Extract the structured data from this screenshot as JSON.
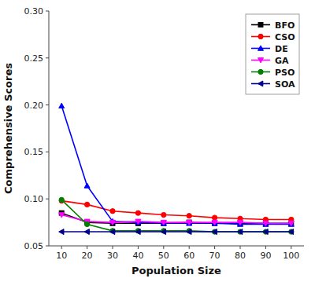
{
  "chart_data": {
    "type": "line",
    "xlabel": "Population Size",
    "ylabel": "Comprehensive Scores",
    "x": [
      10,
      20,
      30,
      40,
      50,
      60,
      70,
      80,
      90,
      100
    ],
    "series": [
      {
        "name": "BFO",
        "color": "#000000",
        "marker": "square",
        "values": [
          0.085,
          0.075,
          0.074,
          0.074,
          0.074,
          0.075,
          0.074,
          0.074,
          0.074,
          0.074
        ]
      },
      {
        "name": "CSO",
        "color": "#ff0000",
        "marker": "circle",
        "values": [
          0.098,
          0.094,
          0.087,
          0.085,
          0.083,
          0.082,
          0.08,
          0.079,
          0.078,
          0.078
        ]
      },
      {
        "name": "DE",
        "color": "#0000ff",
        "marker": "triangle-up",
        "values": [
          0.199,
          0.114,
          0.076,
          0.075,
          0.074,
          0.074,
          0.074,
          0.073,
          0.073,
          0.073
        ]
      },
      {
        "name": "GA",
        "color": "#ff00ff",
        "marker": "triangle-down",
        "values": [
          0.083,
          0.076,
          0.075,
          0.076,
          0.075,
          0.075,
          0.075,
          0.075,
          0.074,
          0.074
        ]
      },
      {
        "name": "PSO",
        "color": "#008000",
        "marker": "circle",
        "values": [
          0.099,
          0.073,
          0.066,
          0.066,
          0.066,
          0.066,
          0.065,
          0.065,
          0.065,
          0.065
        ]
      },
      {
        "name": "SOA",
        "color": "#00008b",
        "marker": "triangle-left",
        "values": [
          0.065,
          0.065,
          0.065,
          0.065,
          0.065,
          0.065,
          0.065,
          0.065,
          0.065,
          0.065
        ]
      }
    ],
    "xlim": [
      5,
      105
    ],
    "xticks": [
      10,
      20,
      30,
      40,
      50,
      60,
      70,
      80,
      90,
      100
    ],
    "ylim": [
      0.05,
      0.3
    ],
    "yticks": [
      0.05,
      {
        "value": 0.1,
        "label": "0.10"
      },
      0.15,
      {
        "value": 0.2,
        "label": "0.20"
      },
      0.25,
      {
        "value": 0.3,
        "label": "0.30"
      }
    ],
    "grid": false,
    "legend": "upper right"
  }
}
